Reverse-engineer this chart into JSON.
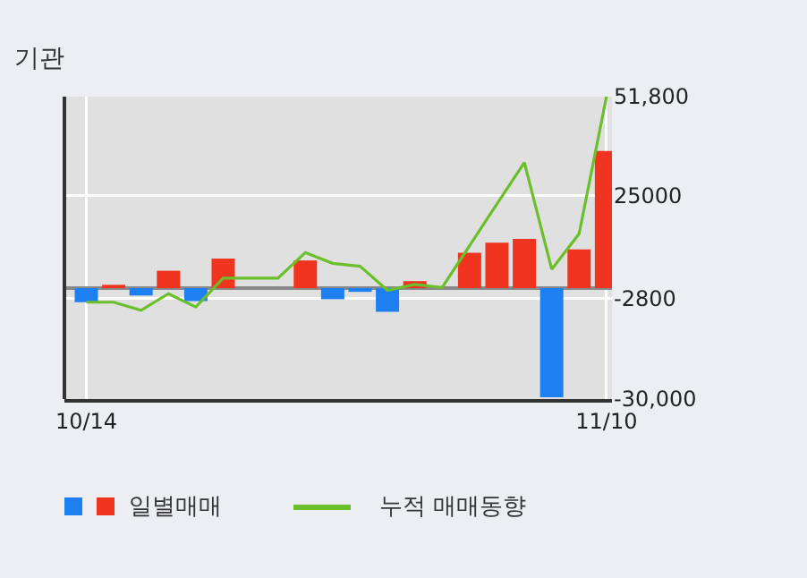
{
  "chart_data": {
    "type": "bar",
    "title": "기관",
    "categories": [
      "10/14",
      null,
      null,
      null,
      null,
      null,
      null,
      null,
      null,
      null,
      null,
      null,
      null,
      null,
      null,
      null,
      null,
      null,
      null,
      "11/10"
    ],
    "series": [
      {
        "name": "일별매매",
        "colors": [
          "#1e7ff0",
          "#f03420",
          "#1e7ff0",
          "#f03420",
          "#1e7ff0",
          "#f03420",
          "#f03420",
          "#f03420",
          "#f03420",
          "#1e7ff0",
          "#1e7ff0",
          "#1e7ff0",
          "#f03420",
          "#f03420",
          "#f03420",
          "#f03420",
          "#f03420",
          "#1e7ff0",
          "#f03420",
          "#f03420"
        ],
        "values": [
          -3800,
          900,
          -2000,
          4700,
          -3500,
          8000,
          0,
          0,
          7500,
          -3000,
          -1000,
          -6400,
          1900,
          0,
          9600,
          12300,
          13300,
          -29500,
          10500,
          37100
        ]
      },
      {
        "name": "누적 매매동향",
        "type": "line",
        "color": "#6abf2a",
        "values": [
          -3800,
          -3800,
          -6000,
          -1500,
          -5100,
          2700,
          2700,
          2700,
          9600,
          6700,
          5900,
          -600,
          1000,
          200,
          11500,
          22800,
          34000,
          5100,
          14700,
          51800
        ]
      }
    ],
    "ylim": [
      -30000,
      51800
    ],
    "yticks": [
      {
        "value": 51800,
        "label": "51,800"
      },
      25000,
      -2800,
      {
        "value": -30000,
        "label": "-30,000"
      }
    ],
    "grid": true,
    "legend": "bottom"
  }
}
